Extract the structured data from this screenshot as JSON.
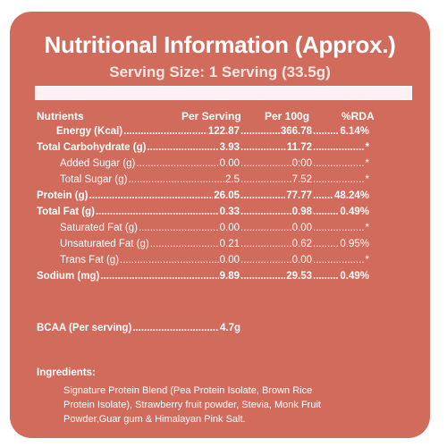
{
  "header": {
    "title": "Nutritional Information (Approx.)",
    "serving": "Serving Size: 1 Serving (33.5g)"
  },
  "columns": {
    "nutrients": "Nutrients",
    "per_serving": "Per Serving",
    "per_100g": "Per 100g",
    "rda": "%RDA"
  },
  "rows": [
    {
      "label": "Energy (Kcal)",
      "serving": "122.87",
      "per100": "366.78",
      "rda": "6.14%"
    },
    {
      "label": "Total Carbohydrate (g)",
      "serving": "3.93",
      "per100": "11.72",
      "rda": "*"
    },
    {
      "label": "Added Sugar (g)",
      "serving": "0.00",
      "per100": "0:00",
      "rda": "*"
    },
    {
      "label": "Total Sugar (g)",
      "serving": "2.5",
      "per100": "7.52",
      "rda": "*"
    },
    {
      "label": "Protein (g)",
      "serving": "26.05",
      "per100": "77.77",
      "rda": "48.24%"
    },
    {
      "label": "Total Fat (g)",
      "serving": "0.33",
      "per100": "0.98",
      "rda": "0.49%"
    },
    {
      "label": "Saturated Fat (g)",
      "serving": "0.00",
      "per100": "0.00",
      "rda": "*"
    },
    {
      "label": "Unsaturated Fat (g)",
      "serving": "0.21",
      "per100": "0.62",
      "rda": "0.95%"
    },
    {
      "label": "Trans Fat (g)",
      "serving": "0.00",
      "per100": "0.00",
      "rda": "*"
    },
    {
      "label": "Sodium (mg)",
      "serving": "9.89",
      "per100": "29.53",
      "rda": "0.49%"
    }
  ],
  "bcaa": {
    "label": "BCAA (Per serving)",
    "value": "4.7g"
  },
  "ingredients": {
    "heading": "Ingredients:",
    "lines": [
      "Signature Protein Blend (Pea Protein Isolate, Brown Rice",
      "Protein Isolate), Strawberry fruit powder, Stevia, Monk Fruit",
      "Powder,Guar gum & Himalayan Pink Salt."
    ]
  },
  "colors": {
    "card": "#d16b5c",
    "text": "#ffffff",
    "bar": "#fbf0f6"
  }
}
